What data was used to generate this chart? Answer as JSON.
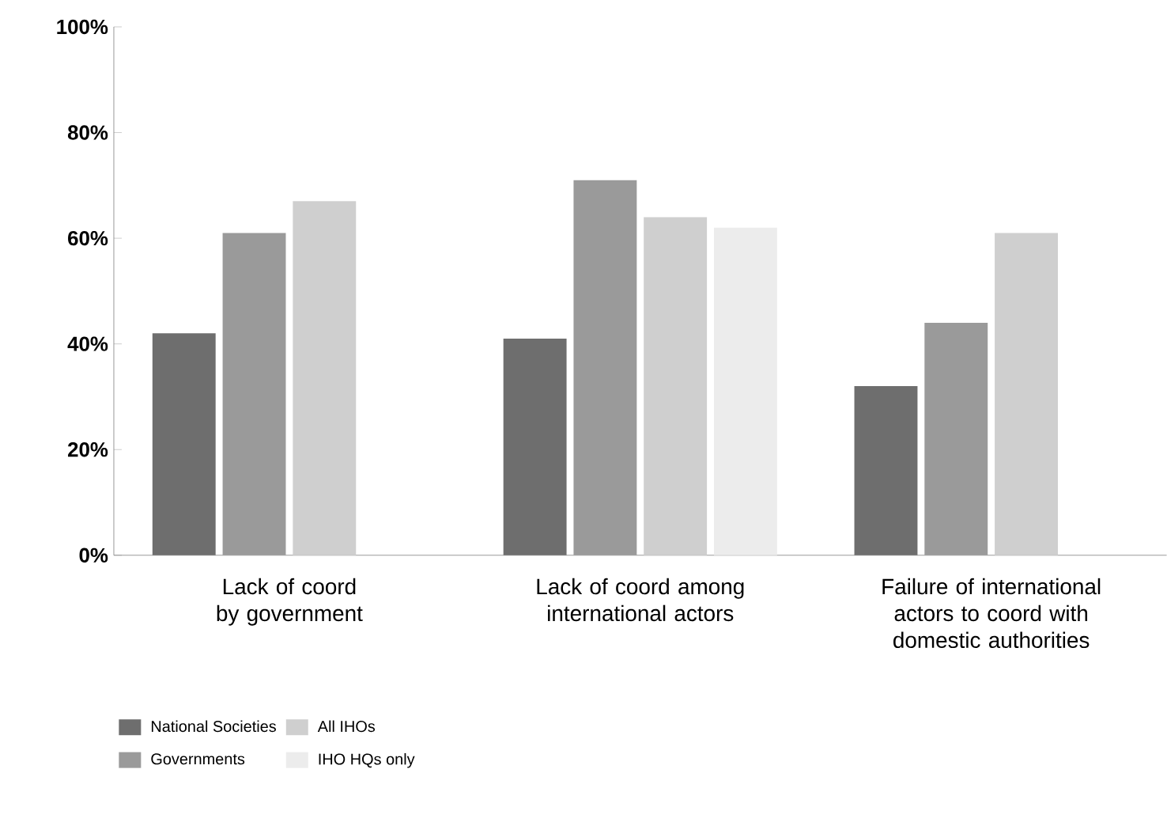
{
  "chart_data": {
    "type": "bar",
    "categories": [
      "Lack of coord by government",
      "Lack of coord among international actors",
      "Failure of international actors to coord with domestic authorities"
    ],
    "series": [
      {
        "name": "National Societies",
        "color": "#6e6e6e",
        "values": [
          42,
          41,
          32
        ]
      },
      {
        "name": "Governments",
        "color": "#9a9a9a",
        "values": [
          61,
          71,
          44
        ]
      },
      {
        "name": "All IHOs",
        "color": "#cfcfcf",
        "values": [
          67,
          64,
          61
        ]
      },
      {
        "name": "IHO HQs only",
        "color": "#ececec",
        "values": [
          null,
          62,
          null
        ]
      }
    ],
    "ylim": [
      0,
      100
    ],
    "yticks": [
      {
        "value": 0,
        "label": "0%"
      },
      {
        "value": 20,
        "label": "20%"
      },
      {
        "value": 40,
        "label": "40%"
      },
      {
        "value": 60,
        "label": "60%"
      },
      {
        "value": 80,
        "label": "80%"
      },
      {
        "value": 100,
        "label": "100%"
      }
    ],
    "grid": false,
    "legend": "bottom left"
  }
}
